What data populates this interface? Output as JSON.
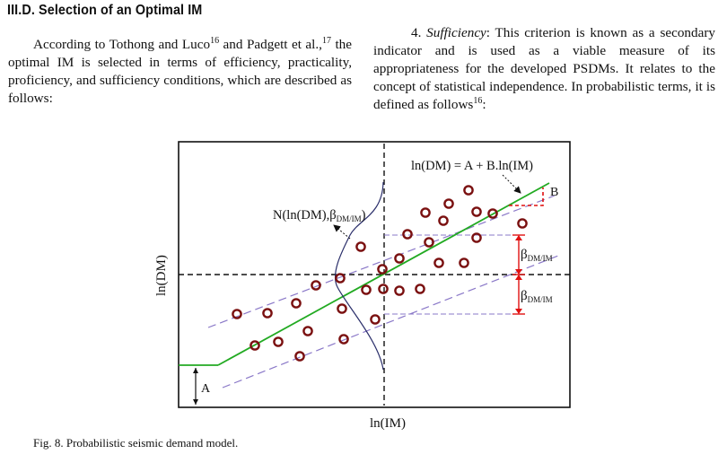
{
  "section": {
    "heading": "III.D. Selection of an Optimal IM"
  },
  "left_column": {
    "p1_a": "According to Tothong and Luco",
    "p1_ref1": "16",
    "p1_b": " and Padgett et al.,",
    "p1_ref2": "17",
    "p1_c": " the optimal IM is selected in terms of efficiency, practicality, proficiency, and sufficiency conditions, which are described as follows:"
  },
  "right_column": {
    "num": "4. ",
    "term": "Sufficiency",
    "body": ": This criterion is known as a secondary indicator and is used as a viable measure of its appropriateness for the developed PSDMs. It relates to the concept of statistical independence. In probabilistic terms, it is defined as follows",
    "ref": "16",
    "end": ":"
  },
  "figure": {
    "equation": "ln(DM) = A + B.ln(IM)",
    "normal_label": "N(ln(DM),β",
    "normal_sub": "DM/IM",
    "normal_close": ")",
    "x_label": "ln(IM)",
    "y_label": "ln(DM)",
    "label_A": "A",
    "label_B": "B",
    "beta": "β",
    "beta_sub": "DM/IM",
    "colors": {
      "line": "#22aa22",
      "points": "#7a1010",
      "dashed_band": "#8a78c8",
      "brackets": "#e01010",
      "normal": "#2a2e6a"
    },
    "caption": "Fig. 8.  Probabilistic seismic demand model."
  }
}
